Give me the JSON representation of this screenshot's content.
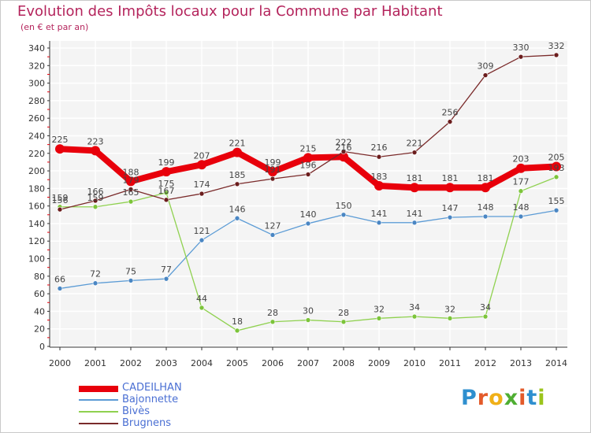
{
  "title": "Evolution des Impôts locaux pour la Commune par Habitant",
  "subtitle": "(en € et par an)",
  "logo": {
    "letters": [
      "P",
      "r",
      "o",
      "x",
      "i",
      "t",
      "i"
    ],
    "colors": [
      "#2e8fcf",
      "#e35a2a",
      "#f0b018",
      "#4fae32",
      "#e35a2a",
      "#2e8fcf",
      "#9bc41c"
    ]
  },
  "chart_data": {
    "type": "line",
    "x": [
      2000,
      2001,
      2002,
      2003,
      2004,
      2005,
      2006,
      2007,
      2008,
      2009,
      2010,
      2011,
      2012,
      2013,
      2014
    ],
    "ylim": [
      0,
      340
    ],
    "yticks": [
      0,
      20,
      40,
      60,
      80,
      100,
      120,
      140,
      160,
      180,
      200,
      220,
      240,
      260,
      280,
      300,
      320,
      340
    ],
    "grid": true,
    "legend_position": "bottom-left",
    "series": [
      {
        "name": "CADEILHAN",
        "color": "#e8000b",
        "width": 8,
        "marker": "#e8000b",
        "values": [
          225,
          223,
          188,
          199,
          207,
          221,
          199,
          215,
          216,
          183,
          181,
          181,
          181,
          203,
          205
        ],
        "labels": [
          "225",
          "223",
          "188",
          "199",
          "207",
          "221",
          "199",
          "215",
          "216",
          "183",
          "181",
          "181",
          "181",
          "203",
          "205"
        ]
      },
      {
        "name": "Bajonnette",
        "color": "#5b9bd5",
        "width": 1.3,
        "marker": "#4a86c3",
        "values": [
          66,
          72,
          75,
          77,
          121,
          146,
          127,
          140,
          150,
          141,
          141,
          147,
          148,
          148,
          155
        ],
        "labels": [
          "66",
          "72",
          "75",
          "77",
          "121",
          "146",
          "127",
          "140",
          "150",
          "141",
          "141",
          "147",
          "148",
          "148",
          "155"
        ]
      },
      {
        "name": "Bivès",
        "color": "#8fd14f",
        "width": 1.3,
        "marker": "#7cc43a",
        "values": [
          159,
          159,
          165,
          175,
          44,
          18,
          28,
          30,
          28,
          32,
          34,
          32,
          34,
          177,
          193
        ],
        "labels": [
          "159",
          "159",
          "165",
          "175",
          "44",
          "18",
          "28",
          "30",
          "28",
          "32",
          "34",
          "32",
          "34",
          "177",
          "193"
        ]
      },
      {
        "name": "Brugnens",
        "color": "#7a2a2a",
        "width": 1.3,
        "marker": "#6b1d1d",
        "values": [
          156,
          166,
          179,
          167,
          174,
          185,
          191,
          196,
          222,
          216,
          221,
          256,
          309,
          330,
          332
        ],
        "labels": [
          "156",
          "166",
          "179",
          "167",
          "174",
          "185",
          "191",
          "196",
          "222",
          "216",
          "221",
          "256",
          "309",
          "330",
          "332"
        ]
      }
    ]
  }
}
